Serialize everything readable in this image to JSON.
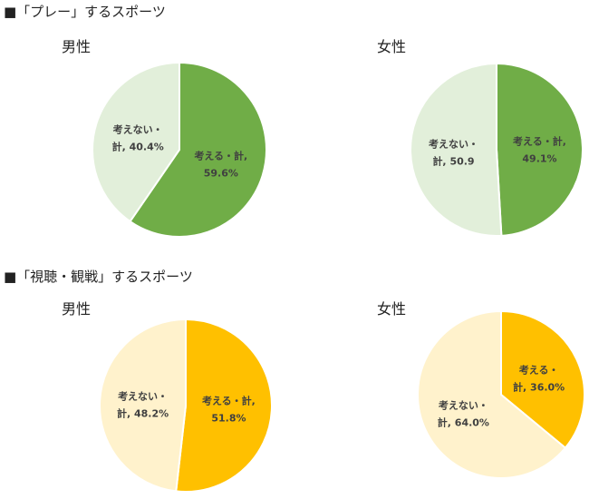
{
  "sections": [
    {
      "title": "■「プレー」するスポーツ"
    },
    {
      "title": "■「視聴・観戦」するスポーツ"
    }
  ],
  "chart_data": [
    {
      "type": "pie",
      "title": "男性",
      "section": "■「プレー」するスポーツ",
      "slices": [
        {
          "label": [
            "考える・計,",
            "59.6%"
          ],
          "value": 59.6,
          "color": "#70ad47"
        },
        {
          "label": [
            "考えない・",
            "計, 40.4%"
          ],
          "value": 40.4,
          "color": "#e2efda"
        }
      ]
    },
    {
      "type": "pie",
      "title": "女性",
      "section": "■「プレー」するスポーツ",
      "slices": [
        {
          "label": [
            "考える・計,",
            "49.1%"
          ],
          "value": 49.1,
          "color": "#70ad47"
        },
        {
          "label": [
            "考えない・",
            "計, 50.9"
          ],
          "value": 50.9,
          "color": "#e2efda"
        }
      ]
    },
    {
      "type": "pie",
      "title": "男性",
      "section": "■「視聴・観戦」するスポーツ",
      "slices": [
        {
          "label": [
            "考える・計,",
            "51.8%"
          ],
          "value": 51.8,
          "color": "#ffc000"
        },
        {
          "label": [
            "考えない・",
            "計, 48.2%"
          ],
          "value": 48.2,
          "color": "#fff2cc"
        }
      ]
    },
    {
      "type": "pie",
      "title": "女性",
      "section": "■「視聴・観戦」するスポーツ",
      "slices": [
        {
          "label": [
            "考える・",
            "計, 36.0%"
          ],
          "value": 36.0,
          "color": "#ffc000"
        },
        {
          "label": [
            "考えない・",
            "計, 64.0%"
          ],
          "value": 64.0,
          "color": "#fff2cc"
        }
      ]
    }
  ]
}
